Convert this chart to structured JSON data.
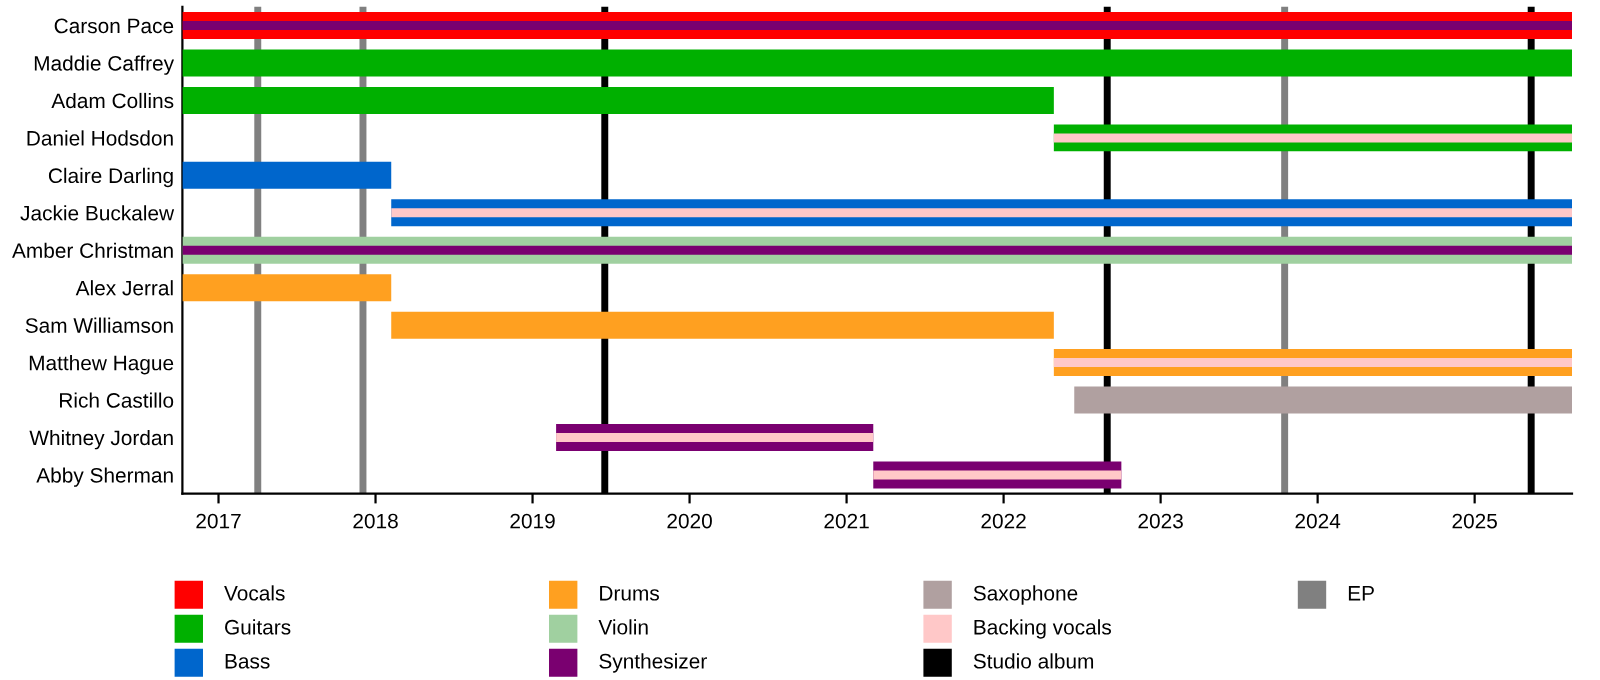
{
  "chart_data": {
    "type": "bar",
    "orientation": "horizontal",
    "categories": [
      "Carson Pace",
      "Maddie Caffrey",
      "Adam Collins",
      "Daniel Hodsdon",
      "Claire Darling",
      "Jackie Buckalew",
      "Amber Christman",
      "Alex Jerral",
      "Sam Williamson",
      "Matthew Hague",
      "Rich Castillo",
      "Whitney Jordan",
      "Abby Sherman"
    ],
    "series": [
      {
        "name": "Vocals",
        "color": "#ff0000",
        "base": [
          2016.77,
          null,
          null,
          null,
          null,
          null,
          null,
          null,
          null,
          null,
          null,
          null,
          null
        ],
        "values": [
          8.85,
          null,
          null,
          null,
          null,
          null,
          null,
          null,
          null,
          null,
          null,
          null,
          null
        ]
      },
      {
        "name": "Guitars",
        "color": "#00b000",
        "base": [
          null,
          2016.77,
          2016.77,
          2022.32,
          null,
          null,
          null,
          null,
          null,
          null,
          null,
          null,
          null
        ],
        "values": [
          null,
          8.85,
          5.55,
          3.3,
          null,
          null,
          null,
          null,
          null,
          null,
          null,
          null,
          null
        ]
      },
      {
        "name": "Bass",
        "color": "#0066cc",
        "base": [
          null,
          null,
          null,
          null,
          2016.77,
          2018.1,
          null,
          null,
          null,
          null,
          null,
          null,
          null
        ],
        "values": [
          null,
          null,
          null,
          null,
          1.33,
          7.52,
          null,
          null,
          null,
          null,
          null,
          null,
          null
        ]
      },
      {
        "name": "Drums",
        "color": "#ffa020",
        "base": [
          null,
          null,
          null,
          null,
          null,
          null,
          null,
          2016.77,
          2018.1,
          2022.32,
          null,
          null,
          null
        ],
        "values": [
          null,
          null,
          null,
          null,
          null,
          null,
          null,
          1.33,
          4.22,
          3.3,
          null,
          null,
          null
        ]
      },
      {
        "name": "Violin",
        "color": "#a0d0a0",
        "base": [
          null,
          null,
          null,
          null,
          null,
          null,
          2016.77,
          null,
          null,
          null,
          null,
          null,
          null
        ],
        "values": [
          null,
          null,
          null,
          null,
          null,
          null,
          8.85,
          null,
          null,
          null,
          null,
          null,
          null
        ]
      },
      {
        "name": "Synthesizer",
        "color": "#7a0070",
        "base": [
          2016.77,
          null,
          null,
          null,
          null,
          null,
          2016.77,
          null,
          null,
          null,
          null,
          2019.15,
          2021.17
        ],
        "values": [
          8.85,
          null,
          null,
          null,
          null,
          null,
          8.85,
          null,
          null,
          null,
          null,
          2.02,
          1.58
        ]
      },
      {
        "name": "Saxophone",
        "color": "#b0a0a0",
        "base": [
          null,
          null,
          null,
          null,
          null,
          null,
          null,
          null,
          null,
          null,
          2022.45,
          null,
          null
        ],
        "values": [
          null,
          null,
          null,
          null,
          null,
          null,
          null,
          null,
          null,
          null,
          3.17,
          null,
          null
        ]
      },
      {
        "name": "Backing vocals",
        "color": "#ffc8c8",
        "base": [
          null,
          null,
          null,
          2022.32,
          null,
          2018.1,
          null,
          null,
          null,
          2022.32,
          null,
          2019.15,
          2021.17
        ],
        "values": [
          null,
          null,
          null,
          3.3,
          null,
          7.52,
          null,
          null,
          null,
          3.3,
          null,
          2.02,
          1.58
        ]
      }
    ],
    "ref_lines": [
      {
        "axis": "x",
        "value": 2019.46,
        "label": "Studio album",
        "color": "#000000"
      },
      {
        "axis": "x",
        "value": 2022.66,
        "label": null,
        "color": "#000000"
      },
      {
        "axis": "x",
        "value": 2025.36,
        "label": null,
        "color": "#000000"
      },
      {
        "axis": "x",
        "value": 2017.25,
        "label": "EP",
        "color": "#808080"
      },
      {
        "axis": "x",
        "value": 2017.92,
        "label": null,
        "color": "#808080"
      },
      {
        "axis": "x",
        "value": 2023.79,
        "label": null,
        "color": "#808080"
      }
    ],
    "xlim": [
      2016.77,
      2025.62
    ],
    "xticks": [
      2017,
      2018,
      2019,
      2020,
      2021,
      2022,
      2023,
      2024,
      2025
    ],
    "grid": false,
    "legend": "bottom"
  }
}
